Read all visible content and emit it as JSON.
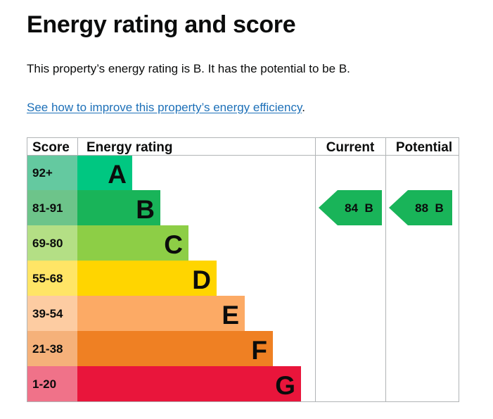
{
  "heading": "Energy rating and score",
  "summary": "This property’s energy rating is B. It has the potential to be B.",
  "improve_link": {
    "text": "See how to improve this property’s energy efficiency",
    "suffix": "."
  },
  "chart_data": {
    "type": "bar",
    "columns": {
      "score": "Score",
      "rating": "Energy rating",
      "current": "Current",
      "potential": "Potential"
    },
    "bands": [
      {
        "score": "92+",
        "letter": "A",
        "color": "#00c781",
        "score_bg": "#64c9a0"
      },
      {
        "score": "81-91",
        "letter": "B",
        "color": "#19b459",
        "score_bg": "#6dc48a"
      },
      {
        "score": "69-80",
        "letter": "C",
        "color": "#8dce46",
        "score_bg": "#b4df85"
      },
      {
        "score": "55-68",
        "letter": "D",
        "color": "#ffd500",
        "score_bg": "#ffe566"
      },
      {
        "score": "39-54",
        "letter": "E",
        "color": "#fcaa65",
        "score_bg": "#fdcca2"
      },
      {
        "score": "21-38",
        "letter": "F",
        "color": "#ef8023",
        "score_bg": "#f5b17a"
      },
      {
        "score": "1-20",
        "letter": "G",
        "color": "#e9153b",
        "score_bg": "#f07289"
      }
    ],
    "current": {
      "value": 84,
      "letter": "B",
      "label": "84  B",
      "color": "#19b459"
    },
    "potential": {
      "value": 88,
      "letter": "B",
      "label": "88  B",
      "color": "#19b459"
    }
  }
}
